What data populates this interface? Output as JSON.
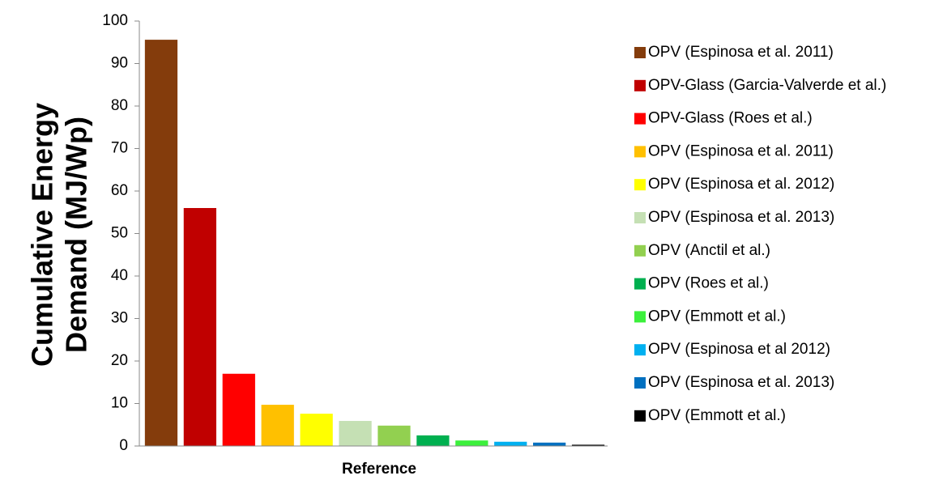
{
  "chart_data": {
    "type": "bar",
    "y_axis_label": [
      "Cumulative Energy",
      "Demand (MJ/Wp)"
    ],
    "x_axis_label": "Reference",
    "categories": [
      null
    ],
    "series": [
      {
        "name": "OPV (Espinosa et al. 2011)",
        "color": "#843c0c",
        "values": [
          95.6
        ]
      },
      {
        "name": "OPV-Glass (Garcia-Valverde et al.)",
        "color": "#c00000",
        "values": [
          56
        ]
      },
      {
        "name": "OPV-Glass (Roes et al.)",
        "color": "#ff0000",
        "values": [
          17
        ]
      },
      {
        "name": "OPV (Espinosa et al. 2011)",
        "color": "#ffc000",
        "values": [
          9.7
        ]
      },
      {
        "name": "OPV (Espinosa et al. 2012)",
        "color": "#ffff00",
        "values": [
          7.6
        ]
      },
      {
        "name": "OPV (Espinosa et al. 2013)",
        "color": "#c5e0b4",
        "values": [
          5.9
        ]
      },
      {
        "name": "OPV (Anctil et al.)",
        "color": "#92d050",
        "values": [
          4.8
        ]
      },
      {
        "name": "OPV (Roes et al.)",
        "color": "#00b050",
        "values": [
          2.5
        ]
      },
      {
        "name": "OPV (Emmott et al.)",
        "color": "#3cf03c",
        "values": [
          1.3
        ]
      },
      {
        "name": "OPV (Espinosa et al 2012)",
        "color": "#00b0f0",
        "values": [
          1.0
        ]
      },
      {
        "name": "OPV (Espinosa et al. 2013)",
        "color": "#0070c0",
        "values": [
          0.8
        ]
      },
      {
        "name": "OPV (Emmott et al.)",
        "color": "#000000",
        "values": [
          0.3
        ]
      }
    ],
    "ylim": [
      0,
      100
    ],
    "yticks": [
      0,
      10,
      20,
      30,
      40,
      50,
      60,
      70,
      80,
      90,
      100
    ],
    "grid": false,
    "legend": "right"
  }
}
